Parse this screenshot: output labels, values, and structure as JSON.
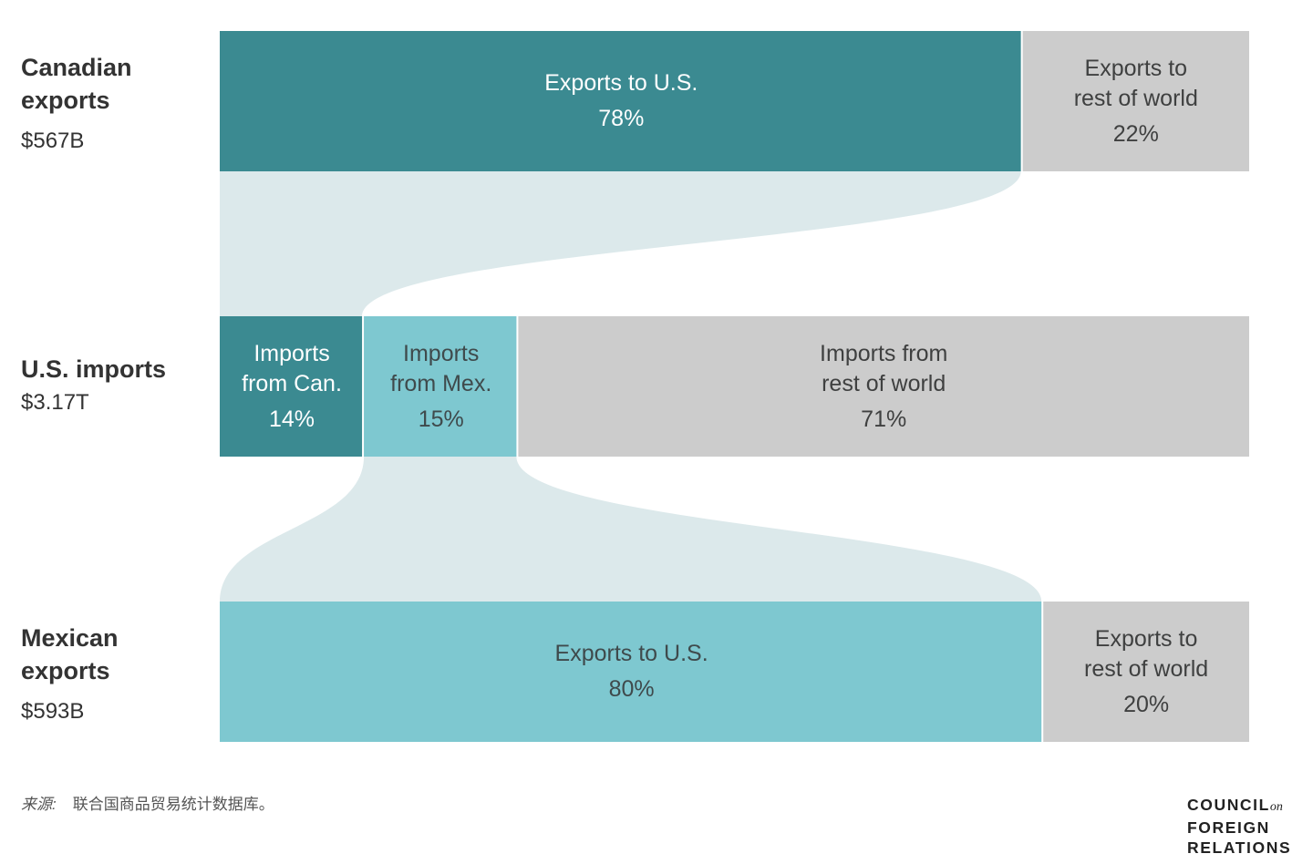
{
  "chart_data": {
    "type": "sankey",
    "title": "",
    "rows": [
      {
        "id": "canada",
        "title": "Canadian\nexports",
        "amount": "$567B",
        "segments": [
          {
            "label": "Exports to U.S.",
            "value": 78,
            "value_label": "78%",
            "color": "#3b8a91"
          },
          {
            "label": "Exports to\nrest of world",
            "value": 22,
            "value_label": "22%",
            "color": "#cccccc"
          }
        ]
      },
      {
        "id": "us",
        "title": "U.S. imports",
        "amount": "$3.17T",
        "segments": [
          {
            "label": "Imports\nfrom Can.",
            "value": 14,
            "value_label": "14%",
            "color": "#3b8a91"
          },
          {
            "label": "Imports\nfrom Mex.",
            "value": 15,
            "value_label": "15%",
            "color": "#7ec8d0"
          },
          {
            "label": "Imports from\nrest of world",
            "value": 71,
            "value_label": "71%",
            "color": "#cccccc"
          }
        ]
      },
      {
        "id": "mexico",
        "title": "Mexican\nexports",
        "amount": "$593B",
        "segments": [
          {
            "label": "Exports to U.S.",
            "value": 80,
            "value_label": "80%",
            "color": "#7ec8d0"
          },
          {
            "label": "Exports to\nrest of world",
            "value": 20,
            "value_label": "20%",
            "color": "#cccccc"
          }
        ]
      }
    ],
    "flows": [
      {
        "from": "Canadian exports: Exports to U.S.",
        "to": "U.S. imports: Imports from Can."
      },
      {
        "from": "Mexican exports: Exports to U.S.",
        "to": "U.S. imports: Imports from Mex."
      }
    ],
    "flow_color": "#dce9eb"
  },
  "source": {
    "label": "来源:",
    "text": "联合国商品贸易统计数据库。"
  },
  "logo": {
    "line1": "COUNCIL",
    "line1_suffix": "on",
    "line2": "FOREIGN",
    "line3": "RELATIONS"
  }
}
